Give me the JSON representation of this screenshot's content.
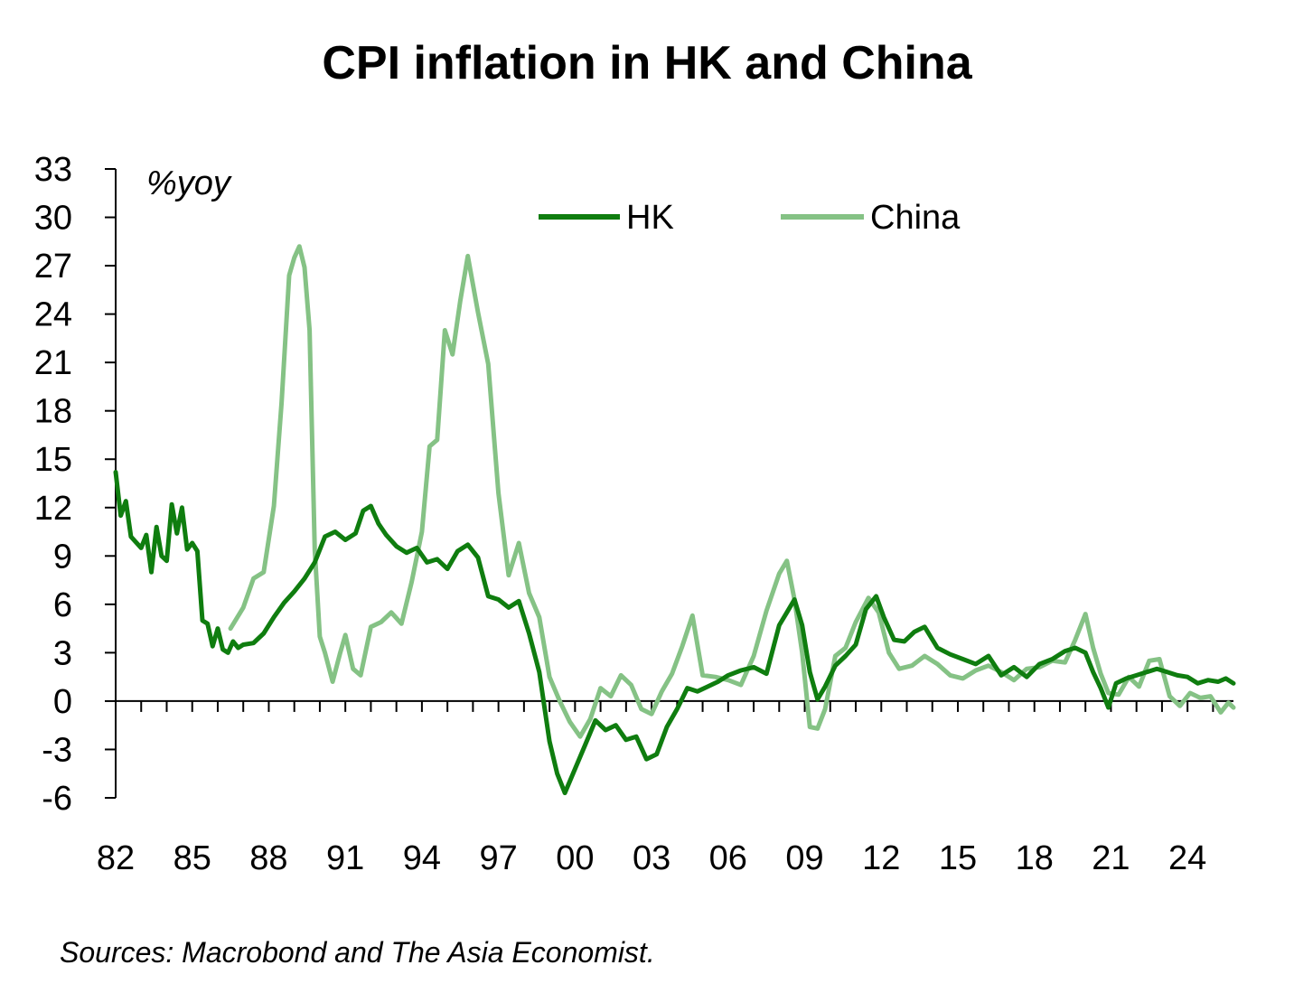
{
  "chart_data": {
    "type": "line",
    "title": "CPI inflation in HK and China",
    "unit_label": "%yoy",
    "xlabel": "",
    "ylabel": "",
    "x_tick_labels": [
      "82",
      "85",
      "88",
      "91",
      "94",
      "97",
      "00",
      "03",
      "06",
      "09",
      "12",
      "15",
      "18",
      "21",
      "24"
    ],
    "x_tick_years": [
      1982,
      1985,
      1988,
      1991,
      1994,
      1997,
      2000,
      2003,
      2006,
      2009,
      2012,
      2015,
      2018,
      2021,
      2024
    ],
    "xlim": [
      1982,
      2025.8
    ],
    "y_ticks": [
      33,
      30,
      27,
      24,
      21,
      18,
      15,
      12,
      9,
      6,
      3,
      0,
      -3,
      -6
    ],
    "ylim": [
      -6,
      33
    ],
    "grid": false,
    "legend_position": "top",
    "source": "Sources: Macrobond and The Asia Economist.",
    "colors": {
      "HK": "#0f7d0f",
      "China": "#85c285"
    },
    "series": [
      {
        "name": "HK",
        "x": [
          1982.0,
          1982.2,
          1982.4,
          1982.6,
          1983.0,
          1983.2,
          1983.4,
          1983.6,
          1983.8,
          1984.0,
          1984.2,
          1984.4,
          1984.6,
          1984.8,
          1985.0,
          1985.2,
          1985.4,
          1985.6,
          1985.8,
          1986.0,
          1986.2,
          1986.4,
          1986.6,
          1986.8,
          1987.0,
          1987.4,
          1987.8,
          1988.2,
          1988.6,
          1989.0,
          1989.4,
          1989.8,
          1990.2,
          1990.6,
          1991.0,
          1991.4,
          1991.7,
          1992.0,
          1992.3,
          1992.6,
          1993.0,
          1993.4,
          1993.8,
          1994.2,
          1994.6,
          1995.0,
          1995.4,
          1995.8,
          1996.2,
          1996.6,
          1997.0,
          1997.4,
          1997.8,
          1998.2,
          1998.6,
          1999.0,
          1999.3,
          1999.6,
          2000.0,
          2000.4,
          2000.8,
          2001.2,
          2001.6,
          2002.0,
          2002.4,
          2002.8,
          2003.2,
          2003.6,
          2004.0,
          2004.4,
          2004.8,
          2005.2,
          2005.6,
          2006.0,
          2006.5,
          2007.0,
          2007.5,
          2008.0,
          2008.3,
          2008.6,
          2008.9,
          2009.2,
          2009.5,
          2009.8,
          2010.2,
          2010.6,
          2011.0,
          2011.4,
          2011.8,
          2012.1,
          2012.5,
          2012.9,
          2013.3,
          2013.7,
          2014.2,
          2014.7,
          2015.2,
          2015.7,
          2016.2,
          2016.7,
          2017.2,
          2017.7,
          2018.2,
          2018.7,
          2019.2,
          2019.6,
          2020.0,
          2020.3,
          2020.6,
          2020.9,
          2021.2,
          2021.6,
          2022.0,
          2022.4,
          2022.8,
          2023.2,
          2023.6,
          2024.0,
          2024.4,
          2024.8,
          2025.2,
          2025.5,
          2025.8
        ],
        "values": [
          14.2,
          11.5,
          12.4,
          10.2,
          9.5,
          10.3,
          8.0,
          10.8,
          9.0,
          8.7,
          12.2,
          10.4,
          12.0,
          9.4,
          9.8,
          9.3,
          5.0,
          4.8,
          3.4,
          4.5,
          3.2,
          3.0,
          3.7,
          3.3,
          3.5,
          3.6,
          4.2,
          5.2,
          6.1,
          6.8,
          7.6,
          8.6,
          10.2,
          10.5,
          10.0,
          10.4,
          11.8,
          12.1,
          11.0,
          10.3,
          9.6,
          9.2,
          9.5,
          8.6,
          8.8,
          8.2,
          9.3,
          9.7,
          8.9,
          6.5,
          6.3,
          5.8,
          6.2,
          4.2,
          1.8,
          -2.5,
          -4.5,
          -5.7,
          -4.2,
          -2.7,
          -1.2,
          -1.8,
          -1.5,
          -2.4,
          -2.2,
          -3.6,
          -3.3,
          -1.6,
          -0.5,
          0.8,
          0.6,
          0.9,
          1.2,
          1.6,
          1.9,
          2.1,
          1.7,
          4.7,
          5.5,
          6.3,
          4.7,
          1.8,
          0.1,
          0.9,
          2.2,
          2.8,
          3.5,
          5.7,
          6.5,
          5.2,
          3.8,
          3.7,
          4.3,
          4.6,
          3.3,
          2.9,
          2.6,
          2.3,
          2.8,
          1.6,
          2.1,
          1.5,
          2.3,
          2.6,
          3.1,
          3.3,
          3.0,
          1.8,
          0.8,
          -0.4,
          1.1,
          1.4,
          1.6,
          1.8,
          2.0,
          1.8,
          1.6,
          1.5,
          1.1,
          1.3,
          1.2,
          1.4,
          1.1
        ]
      },
      {
        "name": "China",
        "x": [
          1986.5,
          1987.0,
          1987.4,
          1987.8,
          1988.2,
          1988.5,
          1988.8,
          1989.0,
          1989.2,
          1989.4,
          1989.6,
          1989.8,
          1990.0,
          1990.2,
          1990.5,
          1990.8,
          1991.0,
          1991.3,
          1991.6,
          1992.0,
          1992.4,
          1992.8,
          1993.2,
          1993.6,
          1994.0,
          1994.3,
          1994.6,
          1994.9,
          1995.2,
          1995.5,
          1995.8,
          1996.2,
          1996.6,
          1997.0,
          1997.4,
          1997.8,
          1998.2,
          1998.6,
          1999.0,
          1999.4,
          1999.8,
          2000.2,
          2000.6,
          2001.0,
          2001.4,
          2001.8,
          2002.2,
          2002.6,
          2003.0,
          2003.4,
          2003.8,
          2004.2,
          2004.6,
          2005.0,
          2005.5,
          2006.0,
          2006.5,
          2007.0,
          2007.5,
          2008.0,
          2008.3,
          2008.6,
          2008.9,
          2009.2,
          2009.5,
          2009.8,
          2010.2,
          2010.6,
          2011.0,
          2011.5,
          2011.9,
          2012.3,
          2012.7,
          2013.2,
          2013.7,
          2014.2,
          2014.7,
          2015.2,
          2015.7,
          2016.2,
          2016.7,
          2017.2,
          2017.7,
          2018.2,
          2018.7,
          2019.2,
          2019.6,
          2020.0,
          2020.3,
          2020.6,
          2020.9,
          2021.3,
          2021.7,
          2022.1,
          2022.5,
          2022.9,
          2023.3,
          2023.7,
          2024.1,
          2024.5,
          2024.9,
          2025.3,
          2025.6,
          2025.8
        ],
        "values": [
          4.5,
          5.8,
          7.6,
          8.0,
          12.1,
          18.5,
          26.4,
          27.5,
          28.2,
          26.9,
          23.0,
          9.4,
          4.0,
          3.0,
          1.2,
          3.0,
          4.1,
          2.0,
          1.6,
          4.6,
          4.9,
          5.5,
          4.8,
          7.4,
          10.5,
          15.8,
          16.2,
          23.0,
          21.5,
          24.8,
          27.6,
          24.1,
          20.9,
          12.9,
          7.8,
          9.8,
          6.7,
          5.2,
          1.5,
          0.0,
          -1.3,
          -2.2,
          -1.1,
          0.8,
          0.3,
          1.6,
          1.0,
          -0.5,
          -0.8,
          0.6,
          1.7,
          3.4,
          5.3,
          1.6,
          1.5,
          1.3,
          1.0,
          2.8,
          5.6,
          7.9,
          8.7,
          6.3,
          3.0,
          -1.6,
          -1.7,
          -0.5,
          2.8,
          3.3,
          4.9,
          6.4,
          5.5,
          3.0,
          2.0,
          2.2,
          2.8,
          2.3,
          1.6,
          1.4,
          1.9,
          2.2,
          1.8,
          1.3,
          2.0,
          2.1,
          2.5,
          2.4,
          3.8,
          5.4,
          3.3,
          1.7,
          0.5,
          0.4,
          1.5,
          0.9,
          2.5,
          2.6,
          0.3,
          -0.3,
          0.5,
          0.2,
          0.3,
          -0.7,
          -0.1,
          -0.4
        ]
      }
    ]
  }
}
